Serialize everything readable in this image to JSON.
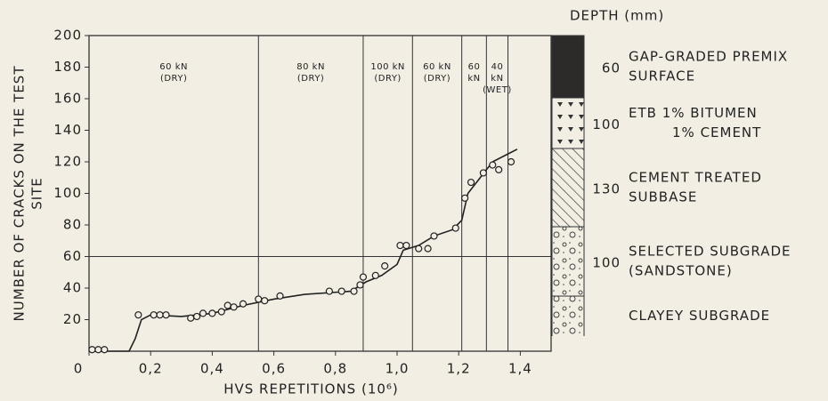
{
  "chart_data": {
    "type": "scatter",
    "y_label": [
      "NUMBER OF CRACKS ON THE TEST",
      "SITE"
    ],
    "x_label": "HVS REPETITIONS (10⁶)",
    "x": [
      0.01,
      0.03,
      0.05,
      0.16,
      0.21,
      0.23,
      0.25,
      0.33,
      0.35,
      0.37,
      0.4,
      0.43,
      0.45,
      0.47,
      0.5,
      0.55,
      0.57,
      0.62,
      0.78,
      0.82,
      0.86,
      0.88,
      0.89,
      0.93,
      0.96,
      1.01,
      1.03,
      1.07,
      1.1,
      1.12,
      1.19,
      1.22,
      1.24,
      1.28,
      1.31,
      1.33,
      1.37
    ],
    "y": [
      1,
      1,
      1,
      23,
      23,
      23,
      23,
      21,
      22,
      24,
      24,
      25,
      29,
      28,
      30,
      33,
      32,
      35,
      38,
      38,
      38,
      42,
      47,
      48,
      54,
      67,
      67,
      65,
      65,
      73,
      78,
      97,
      107,
      113,
      118,
      115,
      120
    ],
    "curve": {
      "x": [
        0,
        0.13,
        0.15,
        0.17,
        0.2,
        0.3,
        0.4,
        0.5,
        0.6,
        0.7,
        0.85,
        0.9,
        0.95,
        1.0,
        1.02,
        1.07,
        1.12,
        1.18,
        1.21,
        1.23,
        1.27,
        1.31,
        1.36,
        1.39
      ],
      "y": [
        0,
        0,
        8,
        20,
        23,
        22,
        24,
        29,
        33,
        36,
        38,
        44,
        48,
        55,
        64,
        67,
        73,
        77,
        83,
        100,
        110,
        120,
        125,
        128
      ]
    },
    "reference_line": 60,
    "phase_boundaries": [
      0.55,
      0.89,
      1.05,
      1.21,
      1.29,
      1.36
    ],
    "phases": [
      [
        "60 kN",
        "(DRY)"
      ],
      [
        "80 kN",
        "(DRY)"
      ],
      [
        "100 kN",
        "(DRY)"
      ],
      [
        "60 kN",
        "(DRY)"
      ],
      [
        "60",
        "kN"
      ],
      [
        "40",
        "kN",
        "(WET)"
      ]
    ],
    "xlim": [
      0,
      1.5
    ],
    "ylim": [
      0,
      200
    ],
    "xticks": [
      0,
      {
        "value": 0.2,
        "label": "0,2"
      },
      {
        "value": 0.4,
        "label": "0,4"
      },
      {
        "value": 0.6,
        "label": "0,6"
      },
      {
        "value": 0.8,
        "label": "0,8"
      },
      {
        "value": 1.0,
        "label": "1,0"
      },
      {
        "value": 1.2,
        "label": "1,2"
      },
      {
        "value": 1.4,
        "label": "1,4"
      }
    ],
    "yticks": [
      20,
      40,
      60,
      80,
      100,
      120,
      140,
      160,
      180,
      200
    ]
  },
  "pavement": {
    "header": "DEPTH (mm)",
    "layers": [
      {
        "depth": "60",
        "name": [
          "GAP-GRADED PREMIX",
          "SURFACE"
        ]
      },
      {
        "depth": "100",
        "name": [
          "ETB 1% BITUMEN",
          "1% CEMENT"
        ]
      },
      {
        "depth": "130",
        "name": [
          "CEMENT TREATED",
          "SUBBASE"
        ]
      },
      {
        "depth": "100",
        "name": [
          "SELECTED SUBGRADE",
          "(SANDSTONE)"
        ]
      },
      {
        "name": [
          "CLAYEY SUBGRADE"
        ]
      }
    ]
  }
}
